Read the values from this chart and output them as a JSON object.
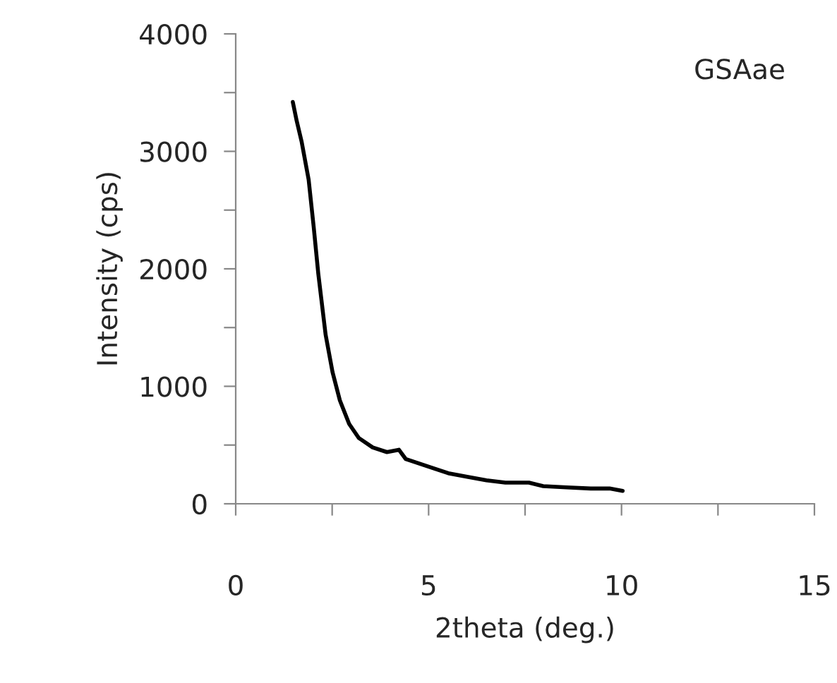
{
  "chart_data": {
    "type": "line",
    "xlabel": "2theta (deg.)",
    "ylabel": "Intensity (cps)",
    "annotations": [
      "GSAae"
    ],
    "x": [
      1.48,
      1.58,
      1.71,
      1.89,
      2.02,
      2.14,
      2.33,
      2.51,
      2.7,
      2.94,
      3.19,
      3.55,
      3.92,
      4.23,
      4.41,
      4.78,
      5.15,
      5.51,
      6.0,
      6.5,
      6.99,
      7.6,
      7.97,
      8.58,
      9.2,
      9.69,
      10.03
    ],
    "series": [
      {
        "color": "#000000",
        "values": [
          3420,
          3260,
          3080,
          2760,
          2360,
          1960,
          1440,
          1120,
          880,
          680,
          560,
          480,
          440,
          460,
          380,
          340,
          300,
          260,
          230,
          200,
          180,
          180,
          150,
          140,
          130,
          130,
          110
        ]
      }
    ],
    "xlim": [
      0,
      15
    ],
    "ylim": [
      0,
      4000
    ],
    "xticks": [
      0,
      {
        "value": 2.5,
        "label": null
      },
      5,
      {
        "value": 7.5,
        "label": null
      },
      10,
      {
        "value": 12.5,
        "label": null
      },
      15
    ],
    "yticks": [
      0,
      {
        "value": 500,
        "label": null
      },
      1000,
      {
        "value": 1500,
        "label": null
      },
      2000,
      {
        "value": 2500,
        "label": null
      },
      3000,
      {
        "value": 3500,
        "label": null
      },
      4000
    ],
    "grid": false,
    "marker": "none",
    "line_style": "solid"
  }
}
